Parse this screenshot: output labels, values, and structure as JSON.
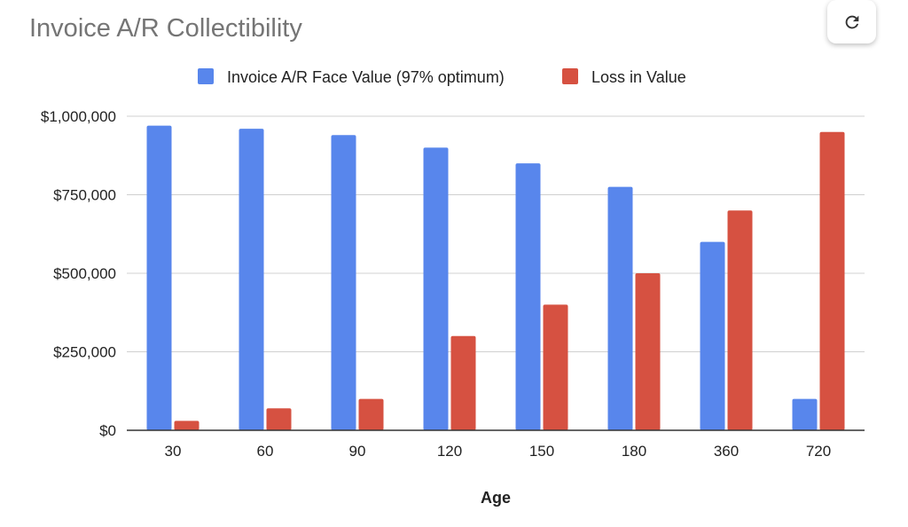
{
  "chart_data": {
    "type": "bar",
    "title": "Invoice A/R Collectibility",
    "xlabel": "Age",
    "ylabel": "",
    "categories": [
      "30",
      "60",
      "90",
      "120",
      "150",
      "180",
      "360",
      "720"
    ],
    "series": [
      {
        "name": "Invoice A/R Face Value (97% optimum)",
        "color": "#5886ec",
        "values": [
          970000,
          960000,
          940000,
          900000,
          850000,
          775000,
          600000,
          100000
        ]
      },
      {
        "name": "Loss in Value",
        "color": "#d65141",
        "values": [
          30000,
          70000,
          100000,
          300000,
          400000,
          500000,
          700000,
          950000
        ]
      }
    ],
    "ylim": [
      0,
      1000000
    ],
    "yticks": [
      0,
      250000,
      500000,
      750000,
      1000000
    ],
    "ytick_labels": [
      "$0",
      "$250,000",
      "$500,000",
      "$750,000",
      "$1,000,000"
    ],
    "grid": true,
    "legend": "top"
  },
  "toolbar": {
    "refresh_icon": "refresh-icon"
  }
}
